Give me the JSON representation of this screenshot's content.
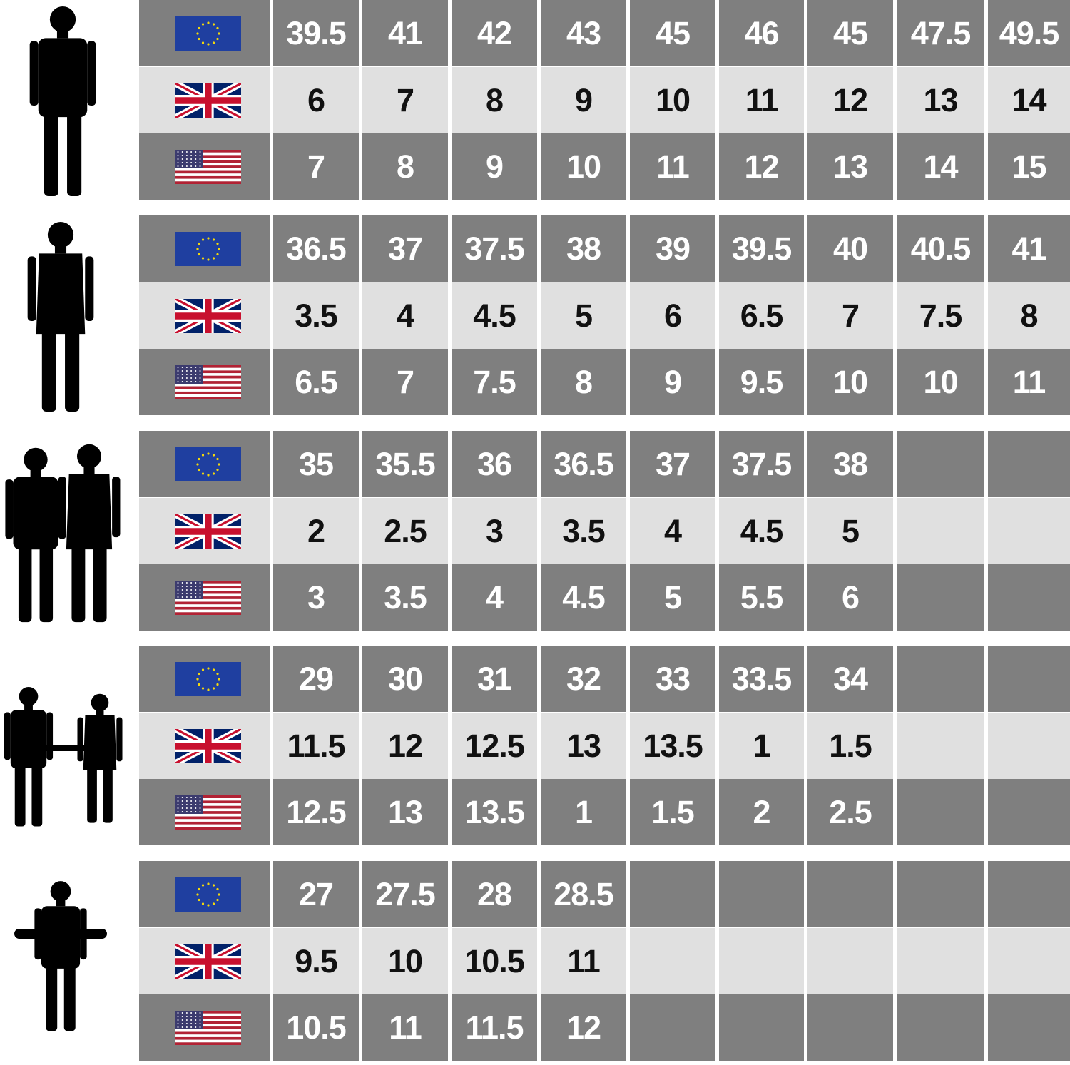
{
  "colors": {
    "dark_row": "#7f7f7f",
    "light_row": "#e0e0e0",
    "eu_blue": "#1f3fa0",
    "eu_star": "#f5d90a"
  },
  "row_flags": [
    "eu-flag",
    "uk-flag",
    "us-flag"
  ],
  "groups": [
    {
      "silhouette": "man-icon",
      "rows": [
        [
          "39.5",
          "41",
          "42",
          "43",
          "45",
          "46",
          "45",
          "47.5",
          "49.5"
        ],
        [
          "6",
          "7",
          "8",
          "9",
          "10",
          "11",
          "12",
          "13",
          "14"
        ],
        [
          "7",
          "8",
          "9",
          "10",
          "11",
          "12",
          "13",
          "14",
          "15"
        ]
      ]
    },
    {
      "silhouette": "woman-icon",
      "rows": [
        [
          "36.5",
          "37",
          "37.5",
          "38",
          "39",
          "39.5",
          "40",
          "40.5",
          "41"
        ],
        [
          "3.5",
          "4",
          "4.5",
          "5",
          "6",
          "6.5",
          "7",
          "7.5",
          "8"
        ],
        [
          "6.5",
          "7",
          "7.5",
          "8",
          "9",
          "9.5",
          "10",
          "10",
          "11"
        ]
      ]
    },
    {
      "silhouette": "older-children-icon",
      "rows": [
        [
          "35",
          "35.5",
          "36",
          "36.5",
          "37",
          "37.5",
          "38",
          "",
          ""
        ],
        [
          "2",
          "2.5",
          "3",
          "3.5",
          "4",
          "4.5",
          "5",
          "",
          ""
        ],
        [
          "3",
          "3.5",
          "4",
          "4.5",
          "5",
          "5.5",
          "6",
          "",
          ""
        ]
      ]
    },
    {
      "silhouette": "young-children-icon",
      "rows": [
        [
          "29",
          "30",
          "31",
          "32",
          "33",
          "33.5",
          "34",
          "",
          ""
        ],
        [
          "11.5",
          "12",
          "12.5",
          "13",
          "13.5",
          "1",
          "1.5",
          "",
          ""
        ],
        [
          "12.5",
          "13",
          "13.5",
          "1",
          "1.5",
          "2",
          "2.5",
          "",
          ""
        ]
      ]
    },
    {
      "silhouette": "toddler-icon",
      "rows": [
        [
          "27",
          "27.5",
          "28",
          "28.5",
          "",
          "",
          "",
          "",
          ""
        ],
        [
          "9.5",
          "10",
          "10.5",
          "11",
          "",
          "",
          "",
          "",
          ""
        ],
        [
          "10.5",
          "11",
          "11.5",
          "12",
          "",
          "",
          "",
          "",
          ""
        ]
      ]
    }
  ]
}
